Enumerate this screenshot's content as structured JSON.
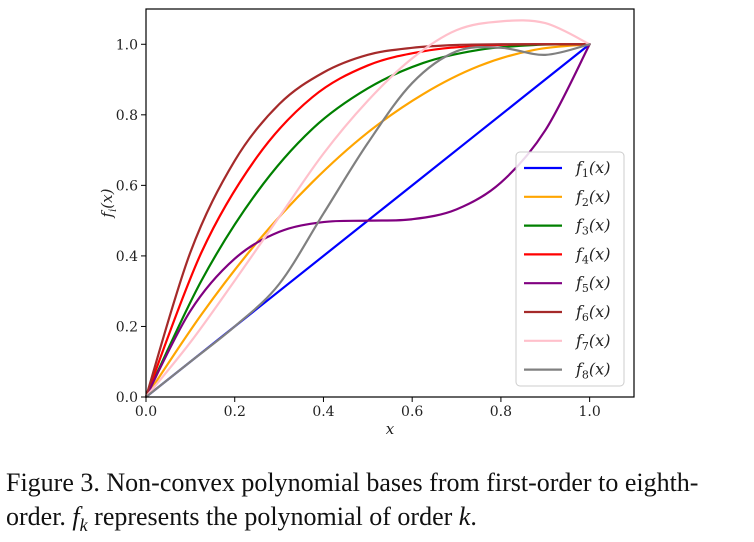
{
  "chart_data": {
    "type": "line",
    "xlabel": "x",
    "ylabel": "f_i(x)",
    "xlim": [
      0.0,
      1.1
    ],
    "ylim": [
      0.0,
      1.1
    ],
    "xticks": [
      "0.0",
      "0.2",
      "0.4",
      "0.6",
      "0.8",
      "1.0"
    ],
    "yticks": [
      "0.0",
      "0.2",
      "0.4",
      "0.6",
      "0.8",
      "1.0"
    ],
    "grid": false,
    "legend_position": "lower-right",
    "series": [
      {
        "name": "f1(x)",
        "color": "#0000ff",
        "x": [
          0,
          0.25,
          0.5,
          0.75,
          1.0
        ],
        "y": [
          0,
          0.25,
          0.5,
          0.75,
          1.0
        ]
      },
      {
        "name": "f2(x)",
        "color": "#ffa500",
        "x": [
          0,
          0.125,
          0.25,
          0.375,
          0.5,
          0.625,
          0.75,
          0.875,
          1.0
        ],
        "y": [
          0,
          0.234,
          0.438,
          0.609,
          0.75,
          0.859,
          0.938,
          0.984,
          1.0
        ]
      },
      {
        "name": "f3(x)",
        "color": "#008000",
        "x": [
          0,
          0.125,
          0.25,
          0.375,
          0.5,
          0.625,
          0.75,
          0.875,
          1.0
        ],
        "y": [
          0,
          0.33,
          0.58,
          0.76,
          0.875,
          0.947,
          0.984,
          0.998,
          1.0
        ]
      },
      {
        "name": "f4(x)",
        "color": "#ff0000",
        "x": [
          0,
          0.125,
          0.25,
          0.375,
          0.5,
          0.625,
          0.75,
          0.875,
          1.0
        ],
        "y": [
          0,
          0.41,
          0.68,
          0.85,
          0.94,
          0.98,
          0.996,
          1.0,
          1.0
        ]
      },
      {
        "name": "f5(x)",
        "color": "#800080",
        "x": [
          0,
          0.1,
          0.2,
          0.3,
          0.4,
          0.5,
          0.6,
          0.7,
          0.8,
          0.9,
          1.0
        ],
        "y": [
          0,
          0.244,
          0.392,
          0.468,
          0.496,
          0.5,
          0.504,
          0.532,
          0.608,
          0.756,
          1.0
        ]
      },
      {
        "name": "f6(x)",
        "color": "#a52a2a",
        "x": [
          0,
          0.1,
          0.2,
          0.3,
          0.4,
          0.5,
          0.6,
          0.7,
          0.8,
          0.9,
          1.0
        ],
        "y": [
          0,
          0.41,
          0.67,
          0.83,
          0.92,
          0.97,
          0.99,
          0.998,
          1.0,
          1.0,
          1.0
        ]
      },
      {
        "name": "f7(x)",
        "color": "#ffc0cb",
        "x": [
          0,
          0.1,
          0.2,
          0.3,
          0.4,
          0.5,
          0.6,
          0.7,
          0.8,
          0.9,
          1.0
        ],
        "y": [
          0,
          0.155,
          0.33,
          0.51,
          0.69,
          0.84,
          0.96,
          1.04,
          1.065,
          1.06,
          1.0
        ]
      },
      {
        "name": "f8(x)",
        "color": "#808080",
        "x": [
          0,
          0.1,
          0.2,
          0.3,
          0.4,
          0.5,
          0.6,
          0.7,
          0.8,
          0.9,
          1.0
        ],
        "y": [
          0,
          0.1,
          0.2,
          0.32,
          0.52,
          0.72,
          0.89,
          0.98,
          0.99,
          0.97,
          1.0
        ]
      }
    ]
  },
  "caption": {
    "label": "Figure 3.",
    "text_1": " Non-convex polynomial bases from first-order to eighth-order. ",
    "math_fk": "f",
    "math_fk_sub": "k",
    "text_2": " represents the polynomial of order ",
    "math_k": "k",
    "text_3": "."
  }
}
